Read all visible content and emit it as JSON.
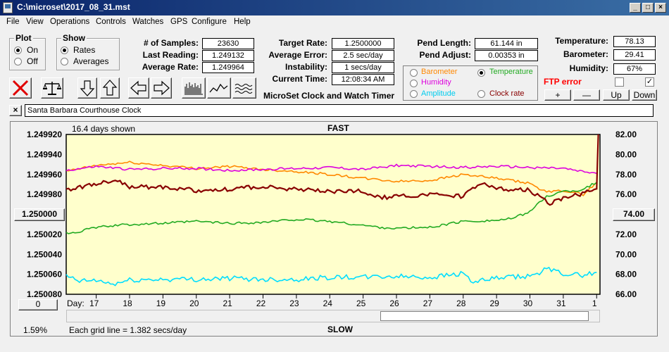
{
  "window": {
    "title": "C:\\microset\\2017_08_31.mst"
  },
  "menu": [
    "File",
    "View",
    "Operations",
    "Controls",
    "Watches",
    "GPS",
    "Configure",
    "Help"
  ],
  "plot_group": {
    "title": "Plot",
    "on": "On",
    "off": "Off"
  },
  "show_group": {
    "title": "Show",
    "rates": "Rates",
    "averages": "Averages"
  },
  "stats": {
    "samples_label": "# of Samples:",
    "samples": "23630",
    "last_reading_label": "Last Reading:",
    "last_reading": "1.249132",
    "average_rate_label": "Average Rate:",
    "average_rate": "1.249964",
    "target_rate_label": "Target Rate:",
    "target_rate": "1.2500000",
    "average_error_label": "Average Error:",
    "average_error": "2.5 sec/day",
    "instability_label": "Instability:",
    "instability": "1 secs/day",
    "current_time_label": "Current Time:",
    "current_time": "12:08:34 AM",
    "pend_length_label": "Pend Length:",
    "pend_length": "61.144 in",
    "pend_adjust_label": "Pend Adjust:",
    "pend_adjust": "0.00353 in",
    "temperature_label": "Temperature:",
    "temperature": "78.13",
    "barometer_label": "Barometer:",
    "barometer": "29.41",
    "humidity_label": "Humidity:",
    "humidity": "67%"
  },
  "app_caption": "MicroSet Clock and Watch Timer",
  "sensors": {
    "barometer": "Barometer",
    "temperature": "Temperature",
    "humidity": "Humidity",
    "amplitude": "Amplitude",
    "clock_rate": "Clock rate"
  },
  "ftp_error": "FTP error",
  "adjust_buttons": {
    "plus": "+",
    "minus": "—",
    "up": "Up",
    "down": "Down"
  },
  "clock_name": "Santa Barbara Courthouse Clock",
  "plot": {
    "days_shown": "16.4 days shown",
    "fast": "FAST",
    "slow": "SLOW",
    "grid_note": "Each grid line = 1.382 secs/day",
    "zoom": "1.59%",
    "day_label": "Day:",
    "left_center_button": "1.250000",
    "right_center_button": "74.00",
    "zero_button": "0"
  },
  "colors": {
    "plot_bg": "#ffffcc",
    "barometer": "#ff8800",
    "temperature": "#22aa22",
    "humidity": "#dd00dd",
    "amplitude": "#00ddff",
    "clock_rate": "#880000"
  },
  "chart_data": {
    "type": "line",
    "title": "",
    "xlabel": "Day:",
    "x_ticks": [
      "17",
      "18",
      "19",
      "20",
      "21",
      "22",
      "23",
      "24",
      "25",
      "26",
      "27",
      "28",
      "29",
      "30",
      "31",
      "1"
    ],
    "y_left_ticks": [
      "1.249920",
      "1.249940",
      "1.249960",
      "1.249980",
      "1.250000",
      "1.250020",
      "1.250040",
      "1.250060",
      "1.250080"
    ],
    "y_right_ticks": [
      "82.00",
      "80.00",
      "78.00",
      "76.00",
      "74.00",
      "72.00",
      "70.00",
      "68.00",
      "66.00"
    ],
    "ylim_left": [
      1.24992,
      1.25008
    ],
    "ylim_right": [
      66,
      82
    ],
    "xlim": [
      16.1,
      32.1
    ],
    "series": [
      {
        "name": "Barometer",
        "axis": "right",
        "x": [
          16.1,
          17,
          18,
          19,
          20,
          21,
          22,
          23,
          24,
          25,
          26,
          27,
          28,
          29,
          30,
          30.5,
          31,
          31.6,
          32.0
        ],
        "values": [
          78.3,
          78.9,
          79.2,
          78.9,
          78.6,
          78.8,
          78.5,
          78.3,
          78.0,
          77.6,
          77.3,
          77.4,
          78.0,
          77.6,
          77.1,
          76.2,
          76.4,
          76.0,
          77.2
        ]
      },
      {
        "name": "Temperature",
        "axis": "right",
        "x": [
          16.1,
          16.5,
          17,
          18,
          19,
          20,
          21,
          22,
          23,
          24,
          25,
          25.5,
          26,
          27,
          28,
          29,
          29.5,
          30,
          30.5,
          31,
          31.5,
          32.0
        ],
        "values": [
          72.1,
          72.3,
          72.7,
          73.0,
          73.1,
          73.3,
          73.1,
          73.2,
          73.5,
          73.3,
          72.9,
          72.7,
          72.6,
          72.7,
          73.3,
          73.4,
          73.6,
          74.3,
          75.8,
          76.3,
          76.4,
          77.2
        ]
      },
      {
        "name": "Humidity",
        "axis": "right",
        "x": [
          16.1,
          17,
          18,
          19,
          20,
          21,
          22,
          23,
          24,
          25,
          26,
          27,
          28,
          29,
          30,
          31,
          31.5,
          32.0
        ],
        "values": [
          78.4,
          78.8,
          78.5,
          78.6,
          78.6,
          78.4,
          78.5,
          78.6,
          78.7,
          78.5,
          78.9,
          78.8,
          78.7,
          78.8,
          78.7,
          78.6,
          78.3,
          78.1
        ]
      },
      {
        "name": "Amplitude",
        "axis": "right",
        "x": [
          16.1,
          16.5,
          17,
          17.5,
          18,
          19,
          20,
          21,
          22,
          23,
          24,
          25,
          26,
          27,
          28,
          28.3,
          29,
          30,
          30.5,
          31,
          31.5,
          32.0
        ],
        "values": [
          67.8,
          67.3,
          67.4,
          67.0,
          67.4,
          67.5,
          67.5,
          67.6,
          67.5,
          67.5,
          67.7,
          67.7,
          67.8,
          67.7,
          68.1,
          67.2,
          67.6,
          67.8,
          68.5,
          68.1,
          67.9,
          68.2
        ]
      },
      {
        "name": "Clock rate",
        "axis": "left",
        "x": [
          16.1,
          17,
          17.5,
          18,
          19,
          20,
          21,
          22,
          23,
          24,
          25,
          25.5,
          26,
          27,
          28,
          28.5,
          29,
          30,
          30.3,
          30.6,
          31,
          31.5,
          32.0,
          32.05
        ],
        "values": [
          1.249975,
          1.24997,
          1.249965,
          1.249972,
          1.249973,
          1.249976,
          1.249975,
          1.249972,
          1.249975,
          1.249977,
          1.249977,
          1.249983,
          1.249982,
          1.24998,
          1.249982,
          1.249968,
          1.249974,
          1.249976,
          1.249982,
          1.24999,
          1.249983,
          1.24998,
          1.249975,
          1.24992
        ]
      }
    ]
  }
}
